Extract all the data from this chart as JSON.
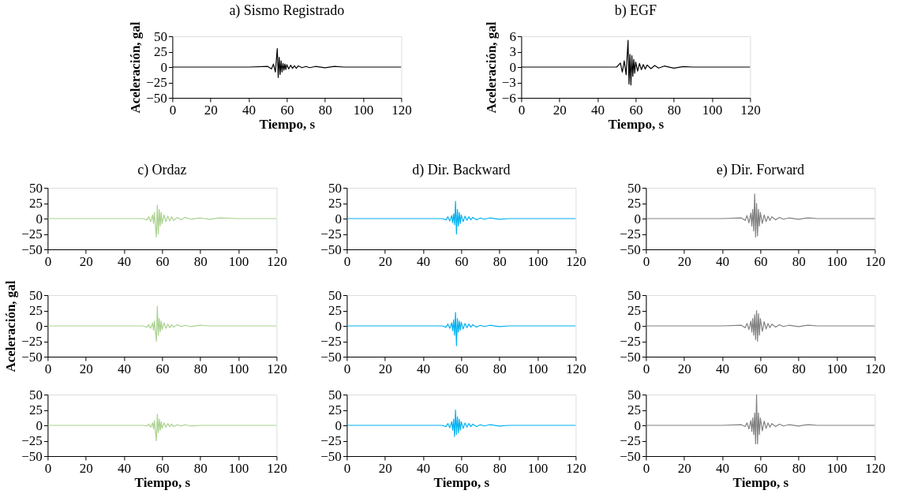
{
  "chart_data": [
    {
      "type": "line",
      "title": "a) Sismo Registrado",
      "xlabel": "Tiempo, s",
      "ylabel": "Aceleración, gal",
      "color": "#000000",
      "xlim": [
        0,
        120
      ],
      "xticks": [
        0,
        20,
        40,
        60,
        80,
        100,
        120
      ],
      "ylim": [
        -50,
        50
      ],
      "yticks": [
        -50,
        -25,
        0,
        25,
        50
      ],
      "x": [
        0,
        10,
        20,
        30,
        40,
        50,
        52,
        53,
        54,
        55,
        55.5,
        56,
        56.5,
        57,
        57.5,
        58,
        58.5,
        59,
        59.5,
        60,
        61,
        62,
        63,
        64,
        65,
        66,
        68,
        70,
        72,
        75,
        80,
        85,
        90,
        100,
        110,
        120
      ],
      "values": [
        0,
        0,
        0,
        0,
        0,
        1,
        -3,
        5,
        -8,
        30,
        -17,
        16,
        -12,
        10,
        -8,
        6,
        -5,
        5,
        -4,
        4,
        -3,
        3,
        -2,
        2,
        -2,
        2,
        -1,
        1,
        -1,
        1,
        -1,
        1,
        0,
        0,
        0,
        0
      ]
    },
    {
      "type": "line",
      "title": "b) EGF",
      "xlabel": "Tiempo, s",
      "ylabel": "Aceleración, gal",
      "color": "#000000",
      "xlim": [
        0,
        120
      ],
      "xticks": [
        0,
        20,
        40,
        60,
        80,
        100,
        120
      ],
      "ylim": [
        -6,
        6
      ],
      "yticks": [
        -6,
        -3,
        0,
        3,
        6
      ],
      "x": [
        0,
        10,
        20,
        30,
        40,
        50,
        52,
        53,
        54,
        55,
        55.5,
        56,
        56.5,
        57,
        57.5,
        58,
        58.5,
        59,
        59.5,
        60,
        61,
        62,
        63,
        64,
        65,
        66,
        68,
        70,
        72,
        75,
        80,
        85,
        90,
        100,
        110,
        120
      ],
      "values": [
        0,
        0,
        0,
        0,
        0,
        0,
        0.8,
        -1,
        1.2,
        -1.5,
        2,
        5.2,
        -3.3,
        2.5,
        -3.5,
        2.2,
        -1.8,
        1.5,
        -1.2,
        1,
        -0.8,
        0.7,
        -0.5,
        0.5,
        -0.4,
        0.4,
        -0.3,
        0.3,
        -0.2,
        0.2,
        -0.2,
        0.1,
        0,
        0,
        0,
        0
      ]
    },
    {
      "type": "line",
      "title": "c) Ordaz",
      "color": "#a9d18e",
      "xlim": [
        0,
        120
      ],
      "xticks": [
        0,
        20,
        40,
        60,
        80,
        100,
        120
      ],
      "ylim": [
        -50,
        50
      ],
      "yticks": [
        -50,
        -25,
        0,
        25,
        50
      ],
      "x": [
        0,
        10,
        20,
        30,
        40,
        50,
        52,
        53,
        54,
        55,
        55.5,
        56,
        56.5,
        57,
        57.5,
        58,
        58.5,
        59,
        59.5,
        60,
        61,
        62,
        63,
        64,
        65,
        66,
        68,
        70,
        72,
        75,
        80,
        85,
        90,
        100,
        110,
        120
      ],
      "values": [
        0,
        0,
        0,
        0,
        0,
        0,
        -2,
        3,
        -5,
        6,
        -8,
        10,
        -12,
        -30,
        22,
        -25,
        15,
        -12,
        10,
        -8,
        6,
        -5,
        4,
        -4,
        3,
        -3,
        2,
        -2,
        2,
        -1,
        1,
        -1,
        1,
        0,
        0,
        0
      ]
    },
    {
      "type": "line",
      "title": "d) Dir. Backward",
      "color": "#00b0f0",
      "xlim": [
        0,
        120
      ],
      "xticks": [
        0,
        20,
        40,
        60,
        80,
        100,
        120
      ],
      "ylim": [
        -50,
        50
      ],
      "yticks": [
        -50,
        -25,
        0,
        25,
        50
      ],
      "x": [
        0,
        10,
        20,
        30,
        40,
        50,
        52,
        53,
        54,
        55,
        55.5,
        56,
        56.5,
        57,
        57.5,
        58,
        58.5,
        59,
        59.5,
        60,
        61,
        62,
        63,
        64,
        65,
        66,
        68,
        70,
        72,
        75,
        80,
        85,
        90,
        100,
        110,
        120
      ],
      "values": [
        0,
        0,
        0,
        0,
        0,
        0,
        -2,
        3,
        -4,
        5,
        -7,
        8,
        -10,
        28,
        -25,
        15,
        -12,
        10,
        -8,
        6,
        -5,
        4,
        -3,
        3,
        -2,
        2,
        -2,
        1,
        -1,
        1,
        -1,
        0,
        0,
        0,
        0,
        0
      ]
    },
    {
      "type": "line",
      "title": "e) Dir. Forward",
      "color": "#808080",
      "xlim": [
        0,
        120
      ],
      "xticks": [
        0,
        20,
        40,
        60,
        80,
        100,
        120
      ],
      "ylim": [
        -50,
        50
      ],
      "yticks": [
        -50,
        -25,
        0,
        25,
        50
      ],
      "x": [
        0,
        10,
        20,
        30,
        40,
        50,
        52,
        53,
        54,
        55,
        55.5,
        56,
        56.5,
        57,
        57.5,
        58,
        58.5,
        59,
        59.5,
        60,
        61,
        62,
        63,
        64,
        65,
        66,
        68,
        70,
        72,
        75,
        80,
        85,
        90,
        100,
        110,
        120
      ],
      "values": [
        0,
        0,
        0,
        0,
        0,
        1,
        -3,
        5,
        -7,
        9,
        -12,
        15,
        -20,
        40,
        -30,
        25,
        -28,
        15,
        -12,
        10,
        -8,
        6,
        -5,
        4,
        -3,
        3,
        -2,
        2,
        -1,
        1,
        -1,
        1,
        0,
        0,
        0,
        0
      ]
    },
    {
      "type": "line",
      "ylabel": "Aceleración, gal",
      "color": "#a9d18e",
      "xlim": [
        0,
        120
      ],
      "xticks": [
        0,
        20,
        40,
        60,
        80,
        100,
        120
      ],
      "ylim": [
        -50,
        50
      ],
      "yticks": [
        -50,
        -25,
        0,
        25,
        50
      ],
      "x": [
        0,
        10,
        20,
        30,
        40,
        50,
        52,
        53,
        54,
        55,
        55.5,
        56,
        56.5,
        57,
        57.5,
        58,
        58.5,
        59,
        59.5,
        60,
        61,
        62,
        63,
        64,
        65,
        66,
        68,
        70,
        72,
        75,
        80,
        85,
        90,
        100,
        110,
        120
      ],
      "values": [
        0,
        0,
        0,
        0,
        0,
        0,
        -2,
        2,
        -4,
        5,
        -7,
        8,
        -10,
        -25,
        32,
        -15,
        12,
        -10,
        8,
        -6,
        5,
        -4,
        3,
        -3,
        2,
        -2,
        2,
        -1,
        1,
        -1,
        1,
        0,
        0,
        0,
        0,
        0
      ]
    },
    {
      "type": "line",
      "color": "#00b0f0",
      "xlim": [
        0,
        120
      ],
      "xticks": [
        0,
        20,
        40,
        60,
        80,
        100,
        120
      ],
      "ylim": [
        -50,
        50
      ],
      "yticks": [
        -50,
        -25,
        0,
        25,
        50
      ],
      "x": [
        0,
        10,
        20,
        30,
        40,
        50,
        52,
        53,
        54,
        55,
        55.5,
        56,
        56.5,
        57,
        57.5,
        58,
        58.5,
        59,
        59.5,
        60,
        61,
        62,
        63,
        64,
        65,
        66,
        68,
        70,
        72,
        75,
        80,
        85,
        90,
        100,
        110,
        120
      ],
      "values": [
        0,
        0,
        0,
        0,
        0,
        0,
        -2,
        3,
        -4,
        5,
        -8,
        10,
        -15,
        22,
        -32,
        12,
        -10,
        8,
        -7,
        6,
        -5,
        4,
        -3,
        3,
        -2,
        2,
        -2,
        1,
        -1,
        1,
        -1,
        0,
        0,
        0,
        0,
        0
      ]
    },
    {
      "type": "line",
      "color": "#808080",
      "xlim": [
        0,
        120
      ],
      "xticks": [
        0,
        20,
        40,
        60,
        80,
        100,
        120
      ],
      "ylim": [
        -50,
        50
      ],
      "yticks": [
        -50,
        -25,
        0,
        25,
        50
      ],
      "x": [
        0,
        10,
        20,
        30,
        40,
        50,
        52,
        53,
        54,
        55,
        55.5,
        56,
        56.5,
        57,
        57.5,
        58,
        58.5,
        59,
        59.5,
        60,
        61,
        62,
        63,
        64,
        65,
        66,
        68,
        70,
        72,
        75,
        80,
        85,
        90,
        100,
        110,
        120
      ],
      "values": [
        0,
        0,
        0,
        0,
        0,
        1,
        -3,
        4,
        -6,
        8,
        -10,
        12,
        -15,
        18,
        -22,
        25,
        -25,
        20,
        -15,
        12,
        -9,
        7,
        -5,
        4,
        -3,
        3,
        -2,
        2,
        -1,
        1,
        -1,
        1,
        0,
        0,
        0,
        0
      ]
    },
    {
      "type": "line",
      "xlabel": "Tiempo, s",
      "color": "#a9d18e",
      "xlim": [
        0,
        120
      ],
      "xticks": [
        0,
        20,
        40,
        60,
        80,
        100,
        120
      ],
      "ylim": [
        -50,
        50
      ],
      "yticks": [
        -50,
        -25,
        0,
        25,
        50
      ],
      "x": [
        0,
        10,
        20,
        30,
        40,
        50,
        52,
        53,
        54,
        55,
        55.5,
        56,
        56.5,
        57,
        57.5,
        58,
        58.5,
        59,
        59.5,
        60,
        61,
        62,
        63,
        64,
        65,
        66,
        68,
        70,
        72,
        75,
        80,
        85,
        90,
        100,
        110,
        120
      ],
      "values": [
        0,
        0,
        0,
        0,
        0,
        0,
        -1,
        2,
        -3,
        4,
        -6,
        8,
        -10,
        -25,
        18,
        -12,
        10,
        -8,
        6,
        -5,
        4,
        -3,
        3,
        -2,
        2,
        -2,
        1,
        -1,
        1,
        -1,
        0,
        0,
        0,
        0,
        0,
        0
      ]
    },
    {
      "type": "line",
      "xlabel": "Tiempo, s",
      "color": "#00b0f0",
      "xlim": [
        0,
        120
      ],
      "xticks": [
        0,
        20,
        40,
        60,
        80,
        100,
        120
      ],
      "ylim": [
        -50,
        50
      ],
      "yticks": [
        -50,
        -25,
        0,
        25,
        50
      ],
      "x": [
        0,
        10,
        20,
        30,
        40,
        50,
        52,
        53,
        54,
        55,
        55.5,
        56,
        56.5,
        57,
        57.5,
        58,
        58.5,
        59,
        59.5,
        60,
        61,
        62,
        63,
        64,
        65,
        66,
        68,
        70,
        72,
        75,
        80,
        85,
        90,
        100,
        110,
        120
      ],
      "values": [
        0,
        0,
        0,
        0,
        0,
        0,
        -2,
        3,
        -4,
        6,
        -8,
        10,
        -18,
        25,
        -15,
        14,
        -12,
        10,
        -8,
        6,
        -5,
        4,
        -3,
        3,
        -2,
        2,
        -2,
        1,
        -1,
        1,
        -1,
        0,
        0,
        0,
        0,
        0
      ]
    },
    {
      "type": "line",
      "xlabel": "Tiempo, s",
      "color": "#808080",
      "xlim": [
        0,
        120
      ],
      "xticks": [
        0,
        20,
        40,
        60,
        80,
        100,
        120
      ],
      "ylim": [
        -50,
        50
      ],
      "yticks": [
        -50,
        -25,
        0,
        25,
        50
      ],
      "x": [
        0,
        10,
        20,
        30,
        40,
        50,
        52,
        53,
        54,
        55,
        55.5,
        56,
        56.5,
        57,
        57.5,
        58,
        58.5,
        59,
        59.5,
        60,
        61,
        62,
        63,
        64,
        65,
        66,
        68,
        70,
        72,
        75,
        80,
        85,
        90,
        100,
        110,
        120
      ],
      "values": [
        0,
        0,
        0,
        0,
        0,
        1,
        -2,
        4,
        -6,
        8,
        -10,
        12,
        -15,
        20,
        -30,
        50,
        -30,
        20,
        -15,
        12,
        -9,
        7,
        -5,
        4,
        -3,
        3,
        -2,
        2,
        -1,
        1,
        -1,
        1,
        0,
        0,
        0,
        0
      ]
    }
  ]
}
